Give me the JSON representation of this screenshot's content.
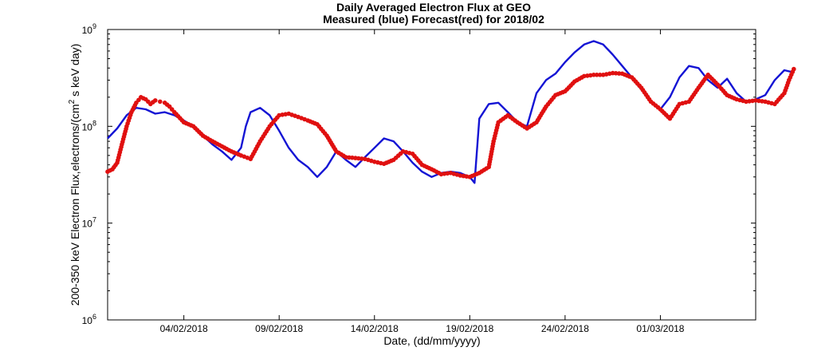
{
  "chart_data": {
    "type": "line",
    "title_line1": "Daily Averaged Electron Flux at GEO",
    "title_line2": "Measured (blue) Forecast(red) for 2018/02",
    "xlabel": "Date, (dd/mm/yyyy)",
    "ylabel_pre": "200-350 keV Electron Flux,electrons/(cm",
    "ylabel_sup": "2",
    "ylabel_post": "s keV day)",
    "y_scale": "log",
    "ylim": [
      1000000,
      1000000000
    ],
    "xlim": [
      "31/01/2018",
      "06/03/2018"
    ],
    "grid": false,
    "y_ticks": [
      {
        "value": 1000000,
        "base": "10",
        "exp": "6"
      },
      {
        "value": 10000000,
        "base": "10",
        "exp": "7"
      },
      {
        "value": 100000000,
        "base": "10",
        "exp": "8"
      },
      {
        "value": 1000000000,
        "base": "10",
        "exp": "9"
      }
    ],
    "x_ticks": [
      "04/02/2018",
      "09/02/2018",
      "14/02/2018",
      "19/02/2018",
      "24/02/2018",
      "01/03/2018"
    ],
    "series": [
      {
        "name": "Measured",
        "color": "#1414d4",
        "style": "line",
        "points": [
          [
            "31/01/2018 00:00",
            75000000
          ],
          [
            "31/01/2018 12:00",
            95000000
          ],
          [
            "01/02/2018 00:00",
            130000000
          ],
          [
            "01/02/2018 12:00",
            155000000
          ],
          [
            "02/02/2018 00:00",
            150000000
          ],
          [
            "02/02/2018 12:00",
            135000000
          ],
          [
            "03/02/2018 00:00",
            140000000
          ],
          [
            "03/02/2018 12:00",
            130000000
          ],
          [
            "04/02/2018 00:00",
            115000000
          ],
          [
            "04/02/2018 12:00",
            100000000
          ],
          [
            "05/02/2018 00:00",
            80000000
          ],
          [
            "05/02/2018 12:00",
            65000000
          ],
          [
            "06/02/2018 00:00",
            55000000
          ],
          [
            "06/02/2018 12:00",
            45000000
          ],
          [
            "07/02/2018 00:00",
            60000000
          ],
          [
            "07/02/2018 06:00",
            100000000
          ],
          [
            "07/02/2018 12:00",
            140000000
          ],
          [
            "08/02/2018 00:00",
            155000000
          ],
          [
            "08/02/2018 12:00",
            130000000
          ],
          [
            "09/02/2018 00:00",
            90000000
          ],
          [
            "09/02/2018 12:00",
            60000000
          ],
          [
            "10/02/2018 00:00",
            45000000
          ],
          [
            "10/02/2018 12:00",
            38000000
          ],
          [
            "11/02/2018 00:00",
            30000000
          ],
          [
            "11/02/2018 12:00",
            38000000
          ],
          [
            "12/02/2018 00:00",
            55000000
          ],
          [
            "12/02/2018 12:00",
            45000000
          ],
          [
            "13/02/2018 00:00",
            38000000
          ],
          [
            "13/02/2018 12:00",
            48000000
          ],
          [
            "14/02/2018 00:00",
            60000000
          ],
          [
            "14/02/2018 12:00",
            75000000
          ],
          [
            "15/02/2018 00:00",
            70000000
          ],
          [
            "15/02/2018 12:00",
            55000000
          ],
          [
            "16/02/2018 00:00",
            42000000
          ],
          [
            "16/02/2018 12:00",
            34000000
          ],
          [
            "17/02/2018 00:00",
            30000000
          ],
          [
            "17/02/2018 12:00",
            33000000
          ],
          [
            "18/02/2018 00:00",
            34000000
          ],
          [
            "18/02/2018 12:00",
            33000000
          ],
          [
            "19/02/2018 00:00",
            30000000
          ],
          [
            "19/02/2018 06:00",
            26000000
          ],
          [
            "19/02/2018 12:00",
            120000000
          ],
          [
            "20/02/2018 00:00",
            170000000
          ],
          [
            "20/02/2018 12:00",
            175000000
          ],
          [
            "21/02/2018 00:00",
            140000000
          ],
          [
            "21/02/2018 12:00",
            110000000
          ],
          [
            "22/02/2018 00:00",
            100000000
          ],
          [
            "22/02/2018 12:00",
            220000000
          ],
          [
            "23/02/2018 00:00",
            300000000
          ],
          [
            "23/02/2018 12:00",
            350000000
          ],
          [
            "24/02/2018 00:00",
            460000000
          ],
          [
            "24/02/2018 12:00",
            580000000
          ],
          [
            "25/02/2018 00:00",
            700000000
          ],
          [
            "25/02/2018 12:00",
            760000000
          ],
          [
            "26/02/2018 00:00",
            700000000
          ],
          [
            "26/02/2018 12:00",
            550000000
          ],
          [
            "27/02/2018 00:00",
            420000000
          ],
          [
            "27/02/2018 12:00",
            320000000
          ],
          [
            "28/02/2018 00:00",
            240000000
          ],
          [
            "28/02/2018 12:00",
            180000000
          ],
          [
            "01/03/2018 00:00",
            150000000
          ],
          [
            "01/03/2018 12:00",
            200000000
          ],
          [
            "02/03/2018 00:00",
            320000000
          ],
          [
            "02/03/2018 12:00",
            420000000
          ],
          [
            "03/03/2018 00:00",
            400000000
          ],
          [
            "03/03/2018 12:00",
            300000000
          ],
          [
            "04/03/2018 00:00",
            250000000
          ],
          [
            "04/03/2018 12:00",
            310000000
          ],
          [
            "05/03/2018 00:00",
            220000000
          ],
          [
            "05/03/2018 12:00",
            180000000
          ],
          [
            "06/03/2018 00:00",
            190000000
          ],
          [
            "06/03/2018 12:00",
            210000000
          ],
          [
            "07/03/2018 00:00",
            300000000
          ],
          [
            "07/03/2018 12:00",
            380000000
          ],
          [
            "08/03/2018 00:00",
            360000000
          ]
        ]
      },
      {
        "name": "Forecast",
        "color": "#e01010",
        "style": "dots",
        "points": [
          [
            "31/01/2018 00:00",
            34000000
          ],
          [
            "31/01/2018 06:00",
            36000000
          ],
          [
            "31/01/2018 12:00",
            42000000
          ],
          [
            "31/01/2018 18:00",
            65000000
          ],
          [
            "01/02/2018 00:00",
            100000000
          ],
          [
            "01/02/2018 06:00",
            140000000
          ],
          [
            "01/02/2018 12:00",
            175000000
          ],
          [
            "01/02/2018 18:00",
            200000000
          ],
          [
            "02/02/2018 00:00",
            190000000
          ],
          [
            "02/02/2018 06:00",
            170000000
          ],
          [
            "02/02/2018 12:00",
            185000000
          ],
          [
            "02/02/2018 18:00",
            180000000
          ],
          [
            "03/02/2018 00:00",
            175000000
          ],
          [
            "03/02/2018 06:00",
            160000000
          ],
          [
            "03/02/2018 12:00",
            140000000
          ],
          [
            "04/02/2018 00:00",
            110000000
          ],
          [
            "04/02/2018 12:00",
            100000000
          ],
          [
            "05/02/2018 00:00",
            80000000
          ],
          [
            "05/02/2018 12:00",
            70000000
          ],
          [
            "06/02/2018 00:00",
            62000000
          ],
          [
            "06/02/2018 12:00",
            55000000
          ],
          [
            "07/02/2018 00:00",
            50000000
          ],
          [
            "07/02/2018 12:00",
            46000000
          ],
          [
            "08/02/2018 00:00",
            70000000
          ],
          [
            "08/02/2018 12:00",
            100000000
          ],
          [
            "09/02/2018 00:00",
            130000000
          ],
          [
            "09/02/2018 12:00",
            135000000
          ],
          [
            "10/02/2018 00:00",
            125000000
          ],
          [
            "10/02/2018 12:00",
            115000000
          ],
          [
            "11/02/2018 00:00",
            105000000
          ],
          [
            "11/02/2018 12:00",
            80000000
          ],
          [
            "12/02/2018 00:00",
            55000000
          ],
          [
            "12/02/2018 12:00",
            48000000
          ],
          [
            "13/02/2018 00:00",
            47000000
          ],
          [
            "13/02/2018 12:00",
            46000000
          ],
          [
            "14/02/2018 00:00",
            43000000
          ],
          [
            "14/02/2018 12:00",
            41000000
          ],
          [
            "15/02/2018 00:00",
            45000000
          ],
          [
            "15/02/2018 12:00",
            55000000
          ],
          [
            "16/02/2018 00:00",
            52000000
          ],
          [
            "16/02/2018 12:00",
            40000000
          ],
          [
            "17/02/2018 00:00",
            36000000
          ],
          [
            "17/02/2018 12:00",
            32000000
          ],
          [
            "18/02/2018 00:00",
            33000000
          ],
          [
            "18/02/2018 12:00",
            31000000
          ],
          [
            "19/02/2018 00:00",
            30000000
          ],
          [
            "19/02/2018 12:00",
            33000000
          ],
          [
            "20/02/2018 00:00",
            38000000
          ],
          [
            "20/02/2018 06:00",
            70000000
          ],
          [
            "20/02/2018 12:00",
            110000000
          ],
          [
            "21/02/2018 00:00",
            130000000
          ],
          [
            "21/02/2018 12:00",
            110000000
          ],
          [
            "22/02/2018 00:00",
            95000000
          ],
          [
            "22/02/2018 12:00",
            110000000
          ],
          [
            "23/02/2018 00:00",
            160000000
          ],
          [
            "23/02/2018 12:00",
            210000000
          ],
          [
            "24/02/2018 00:00",
            230000000
          ],
          [
            "24/02/2018 12:00",
            290000000
          ],
          [
            "25/02/2018 00:00",
            330000000
          ],
          [
            "25/02/2018 12:00",
            340000000
          ],
          [
            "26/02/2018 00:00",
            340000000
          ],
          [
            "26/02/2018 12:00",
            355000000
          ],
          [
            "27/02/2018 00:00",
            350000000
          ],
          [
            "27/02/2018 12:00",
            320000000
          ],
          [
            "28/02/2018 00:00",
            250000000
          ],
          [
            "28/02/2018 12:00",
            180000000
          ],
          [
            "01/03/2018 00:00",
            150000000
          ],
          [
            "01/03/2018 12:00",
            120000000
          ],
          [
            "02/03/2018 00:00",
            170000000
          ],
          [
            "02/03/2018 12:00",
            180000000
          ],
          [
            "03/03/2018 00:00",
            250000000
          ],
          [
            "03/03/2018 12:00",
            340000000
          ],
          [
            "04/03/2018 00:00",
            270000000
          ],
          [
            "04/03/2018 12:00",
            210000000
          ],
          [
            "05/03/2018 00:00",
            190000000
          ],
          [
            "05/03/2018 12:00",
            180000000
          ],
          [
            "06/03/2018 00:00",
            185000000
          ],
          [
            "06/03/2018 12:00",
            180000000
          ],
          [
            "07/03/2018 00:00",
            170000000
          ],
          [
            "07/03/2018 12:00",
            220000000
          ],
          [
            "07/03/2018 18:00",
            300000000
          ],
          [
            "08/03/2018 00:00",
            390000000
          ]
        ]
      }
    ]
  }
}
